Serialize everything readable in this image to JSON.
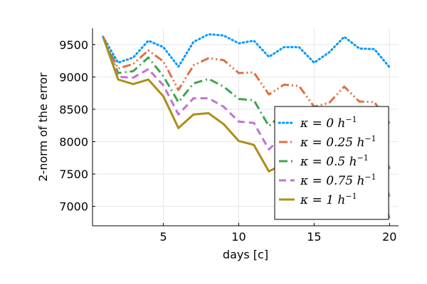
{
  "chart_data": {
    "type": "line",
    "xlabel": "days [c]",
    "ylabel": "2-norm of the error",
    "xlim": [
      0.3,
      20.6
    ],
    "ylim": [
      6700,
      9750
    ],
    "xticks": [
      5,
      10,
      15,
      20
    ],
    "yticks": [
      7000,
      7500,
      8000,
      8500,
      9000,
      9500
    ],
    "grid": true,
    "legend_position": "bottom-right",
    "x": [
      1,
      2,
      3,
      4,
      5,
      6,
      7,
      8,
      9,
      10,
      11,
      12,
      13,
      14,
      15,
      16,
      17,
      18,
      19,
      20
    ],
    "series": [
      {
        "name": "κ = 0 h⁻¹",
        "color": "#009AFA",
        "dash": "dotted",
        "values": [
          9620,
          9220,
          9300,
          9560,
          9460,
          9160,
          9540,
          9660,
          9640,
          9520,
          9560,
          9310,
          9460,
          9460,
          9220,
          9380,
          9620,
          9440,
          9430,
          9150
        ]
      },
      {
        "name": "κ = 0.25 h⁻¹",
        "color": "#E26F46",
        "dash": "dashdotdot",
        "values": [
          9620,
          9130,
          9200,
          9410,
          9240,
          8800,
          9180,
          9290,
          9260,
          9060,
          9070,
          8730,
          8880,
          8860,
          8540,
          8600,
          8850,
          8620,
          8610,
          8280
        ]
      },
      {
        "name": "κ = 0.5 h⁻¹",
        "color": "#3DA44D",
        "dash": "dashdot",
        "values": [
          9620,
          9060,
          9090,
          9300,
          9010,
          8610,
          8900,
          8970,
          8850,
          8660,
          8640,
          8240,
          8450,
          8420,
          8100,
          8140,
          8440,
          8180,
          8170,
          7580
        ]
      },
      {
        "name": "κ = 0.75 h⁻¹",
        "color": "#C271D2",
        "dash": "dashed",
        "values": [
          9620,
          9000,
          8990,
          9120,
          8870,
          8420,
          8670,
          8670,
          8540,
          8310,
          8290,
          7880,
          8100,
          8060,
          7750,
          7780,
          8100,
          7830,
          7830,
          7150
        ]
      },
      {
        "name": "κ = 1 h⁻¹",
        "color": "#AC8D18",
        "dash": "solid",
        "values": [
          9620,
          8960,
          8890,
          8960,
          8700,
          8210,
          8420,
          8440,
          8270,
          8010,
          7950,
          7540,
          7660,
          7640,
          7360,
          7400,
          7700,
          7470,
          7480,
          6820
        ]
      }
    ],
    "legend_labels": [
      {
        "pre": "κ = 0",
        "unit": "h",
        "exp": "−1"
      },
      {
        "pre": "κ = 0.25",
        "unit": "h",
        "exp": "−1"
      },
      {
        "pre": "κ = 0.5",
        "unit": "h",
        "exp": "−1"
      },
      {
        "pre": "κ = 0.75",
        "unit": "h",
        "exp": "−1"
      },
      {
        "pre": "κ = 1",
        "unit": "h",
        "exp": "−1"
      }
    ]
  }
}
